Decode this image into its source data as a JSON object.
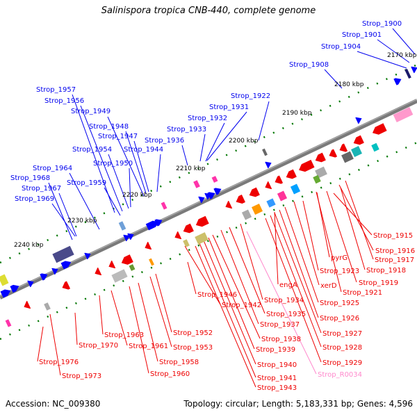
{
  "title": "Salinispora tropica CNB-440, complete genome",
  "footer": {
    "accession": "Accession: NC_009380",
    "summary": "Topology: circular; Length: 5,183,331 bp; Genes: 4,596"
  },
  "colors": {
    "forward_label": "#0000ee",
    "reverse_label": "#ee0000",
    "rna_label": "#ff88cc",
    "backbone": "#808080",
    "tick": "#007700"
  },
  "ticks": [
    "2170 kbp",
    "2180 kbp",
    "2190 kbp",
    "2200 kbp",
    "2210 kbp",
    "2220 kbp",
    "2230 kbp",
    "2240 kbp"
  ],
  "forward_genes": [
    "Strop_1900",
    "Strop_1901",
    "Strop_1904",
    "Strop_1908",
    "Strop_1922",
    "Strop_1931",
    "Strop_1932",
    "Strop_1933",
    "Strop_1936",
    "Strop_1944",
    "Strop_1947",
    "Strop_1948",
    "Strop_1949",
    "Strop_1956",
    "Strop_1957",
    "Strop_1954",
    "Strop_1950",
    "Strop_1959",
    "Strop_1964",
    "Strop_1968",
    "Strop_1967",
    "Strop_1969"
  ],
  "reverse_genes": [
    "Strop_1915",
    "Strop_1916",
    "Strop_1917",
    "Strop_1918",
    "Strop_1919",
    "Strop_1921",
    "pyrG",
    "Strop_1923",
    "xerD",
    "Strop_1925",
    "Strop_1926",
    "Strop_1927",
    "Strop_1928",
    "Strop_1929",
    "engA",
    "Strop_1934",
    "Strop_1935",
    "Strop_1937",
    "Strop_1938",
    "Strop_1939",
    "Strop_1940",
    "Strop_1941",
    "Strop_1943",
    "Strop_1942",
    "Strop_1946",
    "Strop_1952",
    "Strop_1953",
    "Strop_1958",
    "Strop_1960",
    "Strop_1961",
    "Strop_1963",
    "Strop_1970",
    "Strop_1973",
    "Strop_1976"
  ],
  "rna_genes": [
    "Strop_R0034"
  ]
}
